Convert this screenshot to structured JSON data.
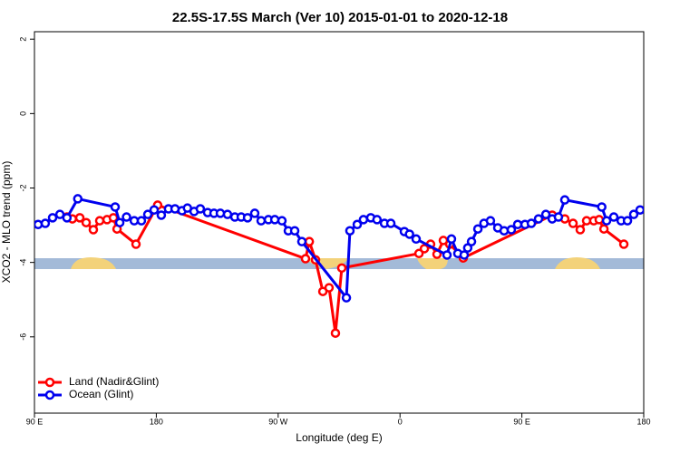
{
  "chart_data": {
    "type": "line",
    "title": "22.5S-17.5S March (Ver 10)   2015-01-01 to 2020-12-18",
    "x_label": "Longitude (deg E)",
    "y_label": "XCO2 - MLO trend (ppm)",
    "xlim": [
      90,
      540
    ],
    "ylim": [
      -8.05,
      2.2
    ],
    "xticks": [
      {
        "value": 90,
        "label": "90 E"
      },
      {
        "value": 180,
        "label": "180"
      },
      {
        "value": 270,
        "label": "90 W"
      },
      {
        "value": 360,
        "label": "0"
      },
      {
        "value": 450,
        "label": "90 E"
      },
      {
        "value": 540,
        "label": "180"
      }
    ],
    "yticks": [
      2,
      0,
      -2,
      -4,
      -6
    ],
    "legend": "bottom-left",
    "series": [
      {
        "name": "Land (Nadir&Glint)",
        "color": "#ff0000",
        "x": [
          114,
          118,
          123.5,
          128.2,
          133.5,
          138.2,
          143.6,
          148.3,
          151,
          165,
          181,
          290.2,
          293,
          297.6,
          303,
          307.6,
          312.3,
          317,
          374,
          378,
          382.6,
          387.3,
          392,
          396.7,
          406.7,
          472.4,
          481.7,
          487.8,
          493.1,
          497.8,
          503.1,
          507.1,
          510.6,
          525.3
        ],
        "values": [
          -2.78,
          -2.83,
          -2.8,
          -2.93,
          -3.12,
          -2.88,
          -2.85,
          -2.8,
          -3.1,
          -3.51,
          -2.46,
          -3.9,
          -3.44,
          -3.93,
          -4.78,
          -4.68,
          -5.9,
          -4.15,
          -3.76,
          -3.63,
          -3.51,
          -3.78,
          -3.41,
          -3.51,
          -3.88,
          -2.73,
          -2.83,
          -2.95,
          -3.12,
          -2.88,
          -2.88,
          -2.85,
          -3.1,
          -3.51
        ]
      },
      {
        "name": "Ocean (Glint)",
        "color": "#0000ee",
        "x": [
          92.7,
          98,
          103.4,
          108.8,
          114,
          122,
          149.6,
          153,
          158,
          163.7,
          169,
          173.7,
          178.4,
          183.7,
          189,
          193.8,
          199,
          203,
          207.9,
          212.5,
          217.9,
          222.6,
          227.3,
          232.6,
          238,
          242.7,
          247.4,
          252.7,
          257.4,
          262.8,
          267.5,
          272.8,
          277.5,
          282.2,
          287.5,
          320.4,
          323,
          328.4,
          333,
          338.4,
          343,
          348.5,
          353.2,
          363.2,
          367,
          371.9,
          394.7,
          398,
          402.7,
          407.4,
          410,
          412.8,
          417.5,
          422,
          426.8,
          432.2,
          436.9,
          442.2,
          446.9,
          452.3,
          457,
          462.3,
          467.7,
          472.4,
          477,
          481.7,
          509,
          512.6,
          517.9,
          523.3,
          528,
          532.6,
          537.3
        ],
        "values": [
          -2.98,
          -2.95,
          -2.8,
          -2.71,
          -2.8,
          -2.29,
          -2.51,
          -2.93,
          -2.78,
          -2.88,
          -2.88,
          -2.71,
          -2.59,
          -2.73,
          -2.56,
          -2.56,
          -2.61,
          -2.54,
          -2.63,
          -2.56,
          -2.66,
          -2.68,
          -2.68,
          -2.71,
          -2.78,
          -2.78,
          -2.8,
          -2.68,
          -2.88,
          -2.85,
          -2.85,
          -2.88,
          -3.15,
          -3.15,
          -3.44,
          -4.95,
          -3.15,
          -2.98,
          -2.85,
          -2.8,
          -2.85,
          -2.95,
          -2.95,
          -3.17,
          -3.24,
          -3.37,
          -3.8,
          -3.37,
          -3.76,
          -3.8,
          -3.61,
          -3.44,
          -3.1,
          -2.95,
          -2.88,
          -3.07,
          -3.15,
          -3.12,
          -2.98,
          -2.98,
          -2.95,
          -2.83,
          -2.71,
          -2.83,
          -2.78,
          -2.32,
          -2.51,
          -2.88,
          -2.78,
          -2.88,
          -2.88,
          -2.71,
          -2.59
        ]
      }
    ]
  }
}
